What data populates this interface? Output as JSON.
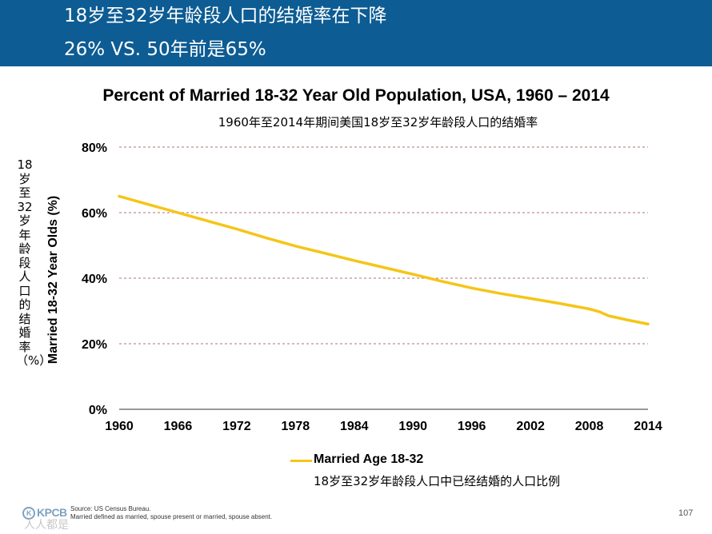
{
  "header": {
    "title_line1": "18岁至32岁年龄段人口的结婚率在下降",
    "title_line2": "26% VS. 50年前是65%",
    "background": "#0d5c93"
  },
  "chart_data": {
    "type": "line",
    "title": "Percent of Married 18-32 Year Old Population, USA, 1960 – 2014",
    "subtitle": "1960年至2014年期间美国18岁至32岁年龄段人口的结婚率",
    "ylabel": "Married 18-32 Year Olds (%)",
    "ylabel_cn": "18岁至32岁年龄段人口的结婚率（%）",
    "xlabel": "",
    "xlim": [
      1960,
      2014
    ],
    "ylim": [
      0,
      80
    ],
    "x_ticks": [
      "1960",
      "1966",
      "1972",
      "1978",
      "1984",
      "1990",
      "1996",
      "2002",
      "2008",
      "2014"
    ],
    "y_ticks": [
      "0%",
      "20%",
      "40%",
      "60%",
      "80%"
    ],
    "grid": "horizontal dashed",
    "series": [
      {
        "name": "Married Age 18-32",
        "name_cn": "18岁至32岁年龄段人口中已经结婚的人口比例",
        "color": "#f5c518",
        "x": [
          1960,
          1963,
          1966,
          1969,
          1972,
          1975,
          1978,
          1981,
          1984,
          1987,
          1990,
          1993,
          1996,
          1999,
          2002,
          2005,
          2008,
          2009,
          2010,
          2012,
          2014
        ],
        "values": [
          65,
          62.5,
          60,
          57.5,
          55,
          52.3,
          49.8,
          47.6,
          45.4,
          43.3,
          41.2,
          39,
          37,
          35.3,
          33.8,
          32.3,
          30.6,
          29.8,
          28.5,
          27.2,
          26
        ]
      }
    ]
  },
  "footer": {
    "logo": "KPCB",
    "source_line1": "Source: US Census Bureau.",
    "source_line2": "Married defined as married, spouse present or married, spouse absent.",
    "page_number": "107",
    "watermark": "人人都是"
  }
}
